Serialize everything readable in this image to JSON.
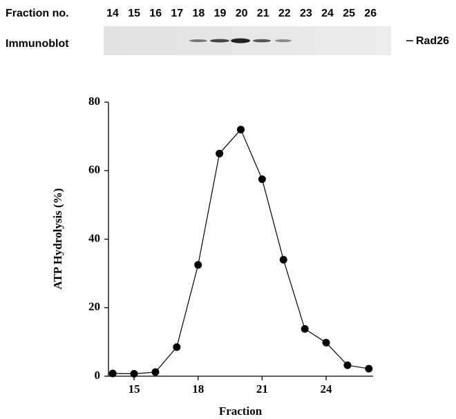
{
  "blot": {
    "header": "Fraction no.",
    "lanes": [
      "14",
      "15",
      "16",
      "17",
      "18",
      "19",
      "20",
      "21",
      "22",
      "23",
      "24",
      "25",
      "26"
    ],
    "row_label": "Immunoblot",
    "marker": "Rad26"
  },
  "chart_data": {
    "type": "line",
    "x_label": "Fraction",
    "y_label": "ATP Hydrolysis (%)",
    "x": [
      14,
      15,
      16,
      17,
      18,
      19,
      20,
      21,
      22,
      23,
      24,
      25,
      26
    ],
    "series": [
      {
        "color": "#000000",
        "values": [
          0.8,
          0.7,
          1.2,
          8.5,
          32.5,
          65,
          72,
          57.5,
          34,
          13.8,
          9.8,
          3.2,
          2.2
        ]
      }
    ],
    "xlim": [
      13.8,
      26.2
    ],
    "xticks": [
      15,
      18,
      21,
      24
    ],
    "ylim": [
      0,
      80
    ],
    "yticks": [
      0,
      20,
      40,
      60,
      80
    ],
    "grid": false
  }
}
